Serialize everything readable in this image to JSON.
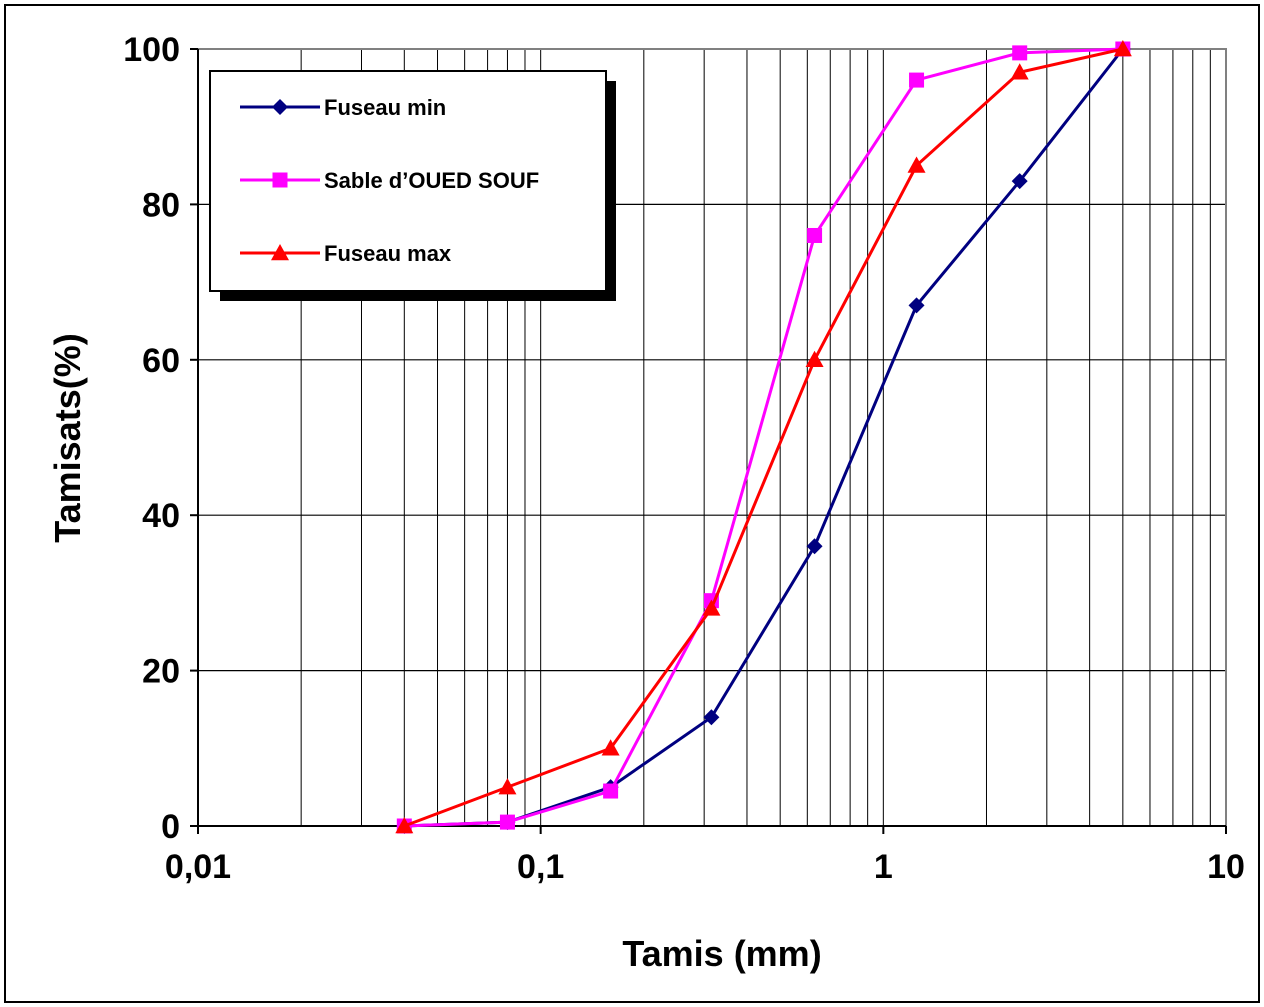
{
  "chart_data": {
    "type": "line",
    "title": "",
    "xlabel": "Tamis (mm)",
    "ylabel": "Tamisats(%)",
    "x_scale": "log",
    "xlim": [
      0.01,
      10
    ],
    "ylim": [
      0,
      100
    ],
    "grid": true,
    "legend_position": "top-left",
    "x_ticks": [
      0.01,
      0.1,
      1,
      10
    ],
    "x_tick_labels": [
      "0,01",
      "0,1",
      "1",
      "10"
    ],
    "y_ticks": [
      0,
      20,
      40,
      60,
      80,
      100
    ],
    "y_tick_labels": [
      "0",
      "20",
      "40",
      "60",
      "80",
      "100"
    ],
    "series": [
      {
        "name": "Fuseau min",
        "color": "#000080",
        "marker": "diamond",
        "x": [
          0.04,
          0.08,
          0.16,
          0.315,
          0.63,
          1.25,
          2.5,
          5
        ],
        "y": [
          0,
          0.5,
          5,
          14,
          36,
          67,
          83,
          100
        ]
      },
      {
        "name": "Sable d’OUED SOUF",
        "color": "#ff00ff",
        "marker": "square",
        "x": [
          0.04,
          0.08,
          0.16,
          0.315,
          0.63,
          1.25,
          2.5,
          5
        ],
        "y": [
          0,
          0.5,
          4.5,
          29,
          76,
          96,
          99.5,
          100
        ]
      },
      {
        "name": "Fuseau max",
        "color": "#ff0000",
        "marker": "triangle",
        "x": [
          0.04,
          0.08,
          0.16,
          0.315,
          0.63,
          1.25,
          2.5,
          5
        ],
        "y": [
          0,
          5,
          10,
          28,
          60,
          85,
          97,
          100
        ]
      }
    ]
  }
}
